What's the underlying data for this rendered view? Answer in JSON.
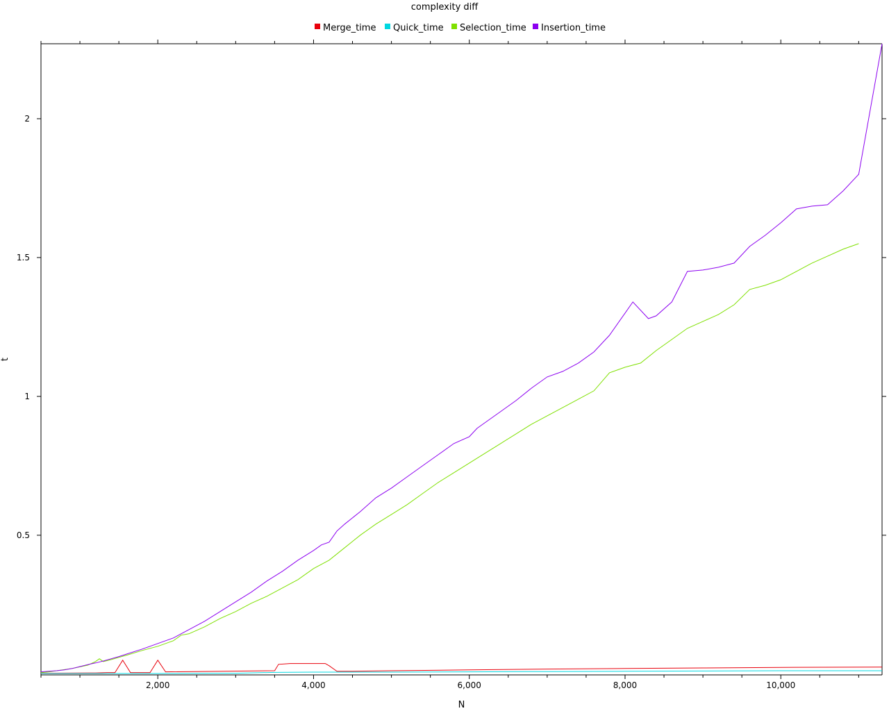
{
  "chart_data": {
    "type": "line",
    "title": "complexity diff",
    "xlabel": "N",
    "ylabel": "t",
    "xlim": [
      500,
      11300
    ],
    "ylim": [
      -0.003,
      2.27
    ],
    "x_ticks": [
      2000,
      4000,
      6000,
      8000,
      10000
    ],
    "x_tick_labels": [
      "2,000",
      "4,000",
      "6,000",
      "8,000",
      "10,000"
    ],
    "y_ticks": [
      0.5,
      1,
      1.5,
      2
    ],
    "y_tick_labels": [
      "0.5",
      "1",
      "1.5",
      "2"
    ],
    "legend_position": "top-center",
    "grid": false,
    "series": [
      {
        "name": "Merge_time",
        "color": "#e8000b",
        "x": [
          500,
          1200,
          1350,
          1450,
          1550,
          1650,
          1900,
          2000,
          2100,
          3500,
          3550,
          3700,
          4150,
          4200,
          4300,
          4500,
          5000,
          6000,
          7000,
          8000,
          9000,
          10000,
          11300
        ],
        "y": [
          0.003,
          0.004,
          0.005,
          0.005,
          0.05,
          0.005,
          0.005,
          0.05,
          0.008,
          0.012,
          0.035,
          0.038,
          0.038,
          0.03,
          0.01,
          0.01,
          0.012,
          0.015,
          0.018,
          0.02,
          0.022,
          0.024,
          0.025
        ]
      },
      {
        "name": "Quick_time",
        "color": "#00d7e0",
        "x": [
          500,
          2000,
          3000,
          3500,
          4000,
          5000,
          6000,
          7000,
          8000,
          9000,
          10000,
          11300
        ],
        "y": [
          0.002,
          0.002,
          0.003,
          0.006,
          0.007,
          0.007,
          0.008,
          0.009,
          0.01,
          0.011,
          0.012,
          0.012
        ]
      },
      {
        "name": "Selection_time",
        "color": "#7fe000",
        "x": [
          500,
          600,
          700,
          800,
          900,
          1000,
          1100,
          1200,
          1250,
          1300,
          1400,
          1500,
          1600,
          1800,
          2000,
          2200,
          2300,
          2400,
          2600,
          2800,
          3000,
          3200,
          3400,
          3600,
          3800,
          4000,
          4200,
          4400,
          4600,
          4800,
          5000,
          5200,
          5400,
          5600,
          5800,
          6000,
          6200,
          6400,
          6600,
          6800,
          7000,
          7200,
          7400,
          7600,
          7800,
          8000,
          8200,
          8400,
          8600,
          8800,
          9000,
          9200,
          9400,
          9600,
          9800,
          10000,
          10200,
          10400,
          10600,
          10800,
          11000
        ],
        "y": [
          0.005,
          0.008,
          0.012,
          0.016,
          0.02,
          0.026,
          0.032,
          0.045,
          0.055,
          0.045,
          0.052,
          0.06,
          0.068,
          0.085,
          0.1,
          0.12,
          0.14,
          0.145,
          0.17,
          0.2,
          0.225,
          0.255,
          0.28,
          0.31,
          0.34,
          0.38,
          0.41,
          0.455,
          0.5,
          0.54,
          0.575,
          0.61,
          0.65,
          0.69,
          0.725,
          0.76,
          0.795,
          0.83,
          0.865,
          0.9,
          0.93,
          0.96,
          0.99,
          1.02,
          1.085,
          1.105,
          1.12,
          1.165,
          1.205,
          1.245,
          1.27,
          1.295,
          1.33,
          1.385,
          1.4,
          1.42,
          1.45,
          1.48,
          1.505,
          1.53,
          1.55
        ]
      },
      {
        "name": "Insertion_time",
        "color": "#8c00f0",
        "x": [
          500,
          600,
          700,
          800,
          900,
          1000,
          1100,
          1200,
          1300,
          1400,
          1500,
          1600,
          1800,
          2000,
          2200,
          2300,
          2400,
          2600,
          2800,
          3000,
          3200,
          3400,
          3600,
          3800,
          4000,
          4100,
          4200,
          4300,
          4400,
          4600,
          4800,
          5000,
          5200,
          5400,
          5600,
          5800,
          6000,
          6100,
          6200,
          6400,
          6600,
          6800,
          7000,
          7200,
          7400,
          7600,
          7800,
          8000,
          8100,
          8300,
          8400,
          8600,
          8800,
          9000,
          9200,
          9400,
          9600,
          9800,
          10000,
          10200,
          10400,
          10600,
          10800,
          11000,
          11300
        ],
        "y": [
          0.008,
          0.01,
          0.012,
          0.015,
          0.02,
          0.027,
          0.034,
          0.04,
          0.047,
          0.055,
          0.063,
          0.072,
          0.09,
          0.11,
          0.13,
          0.145,
          0.16,
          0.19,
          0.225,
          0.26,
          0.295,
          0.335,
          0.37,
          0.41,
          0.445,
          0.465,
          0.475,
          0.515,
          0.54,
          0.585,
          0.635,
          0.67,
          0.71,
          0.75,
          0.79,
          0.83,
          0.855,
          0.885,
          0.905,
          0.945,
          0.985,
          1.03,
          1.07,
          1.09,
          1.12,
          1.16,
          1.22,
          1.3,
          1.34,
          1.28,
          1.29,
          1.34,
          1.45,
          1.455,
          1.465,
          1.48,
          1.54,
          1.58,
          1.625,
          1.675,
          1.685,
          1.69,
          1.74,
          1.8,
          2.27
        ]
      }
    ]
  }
}
